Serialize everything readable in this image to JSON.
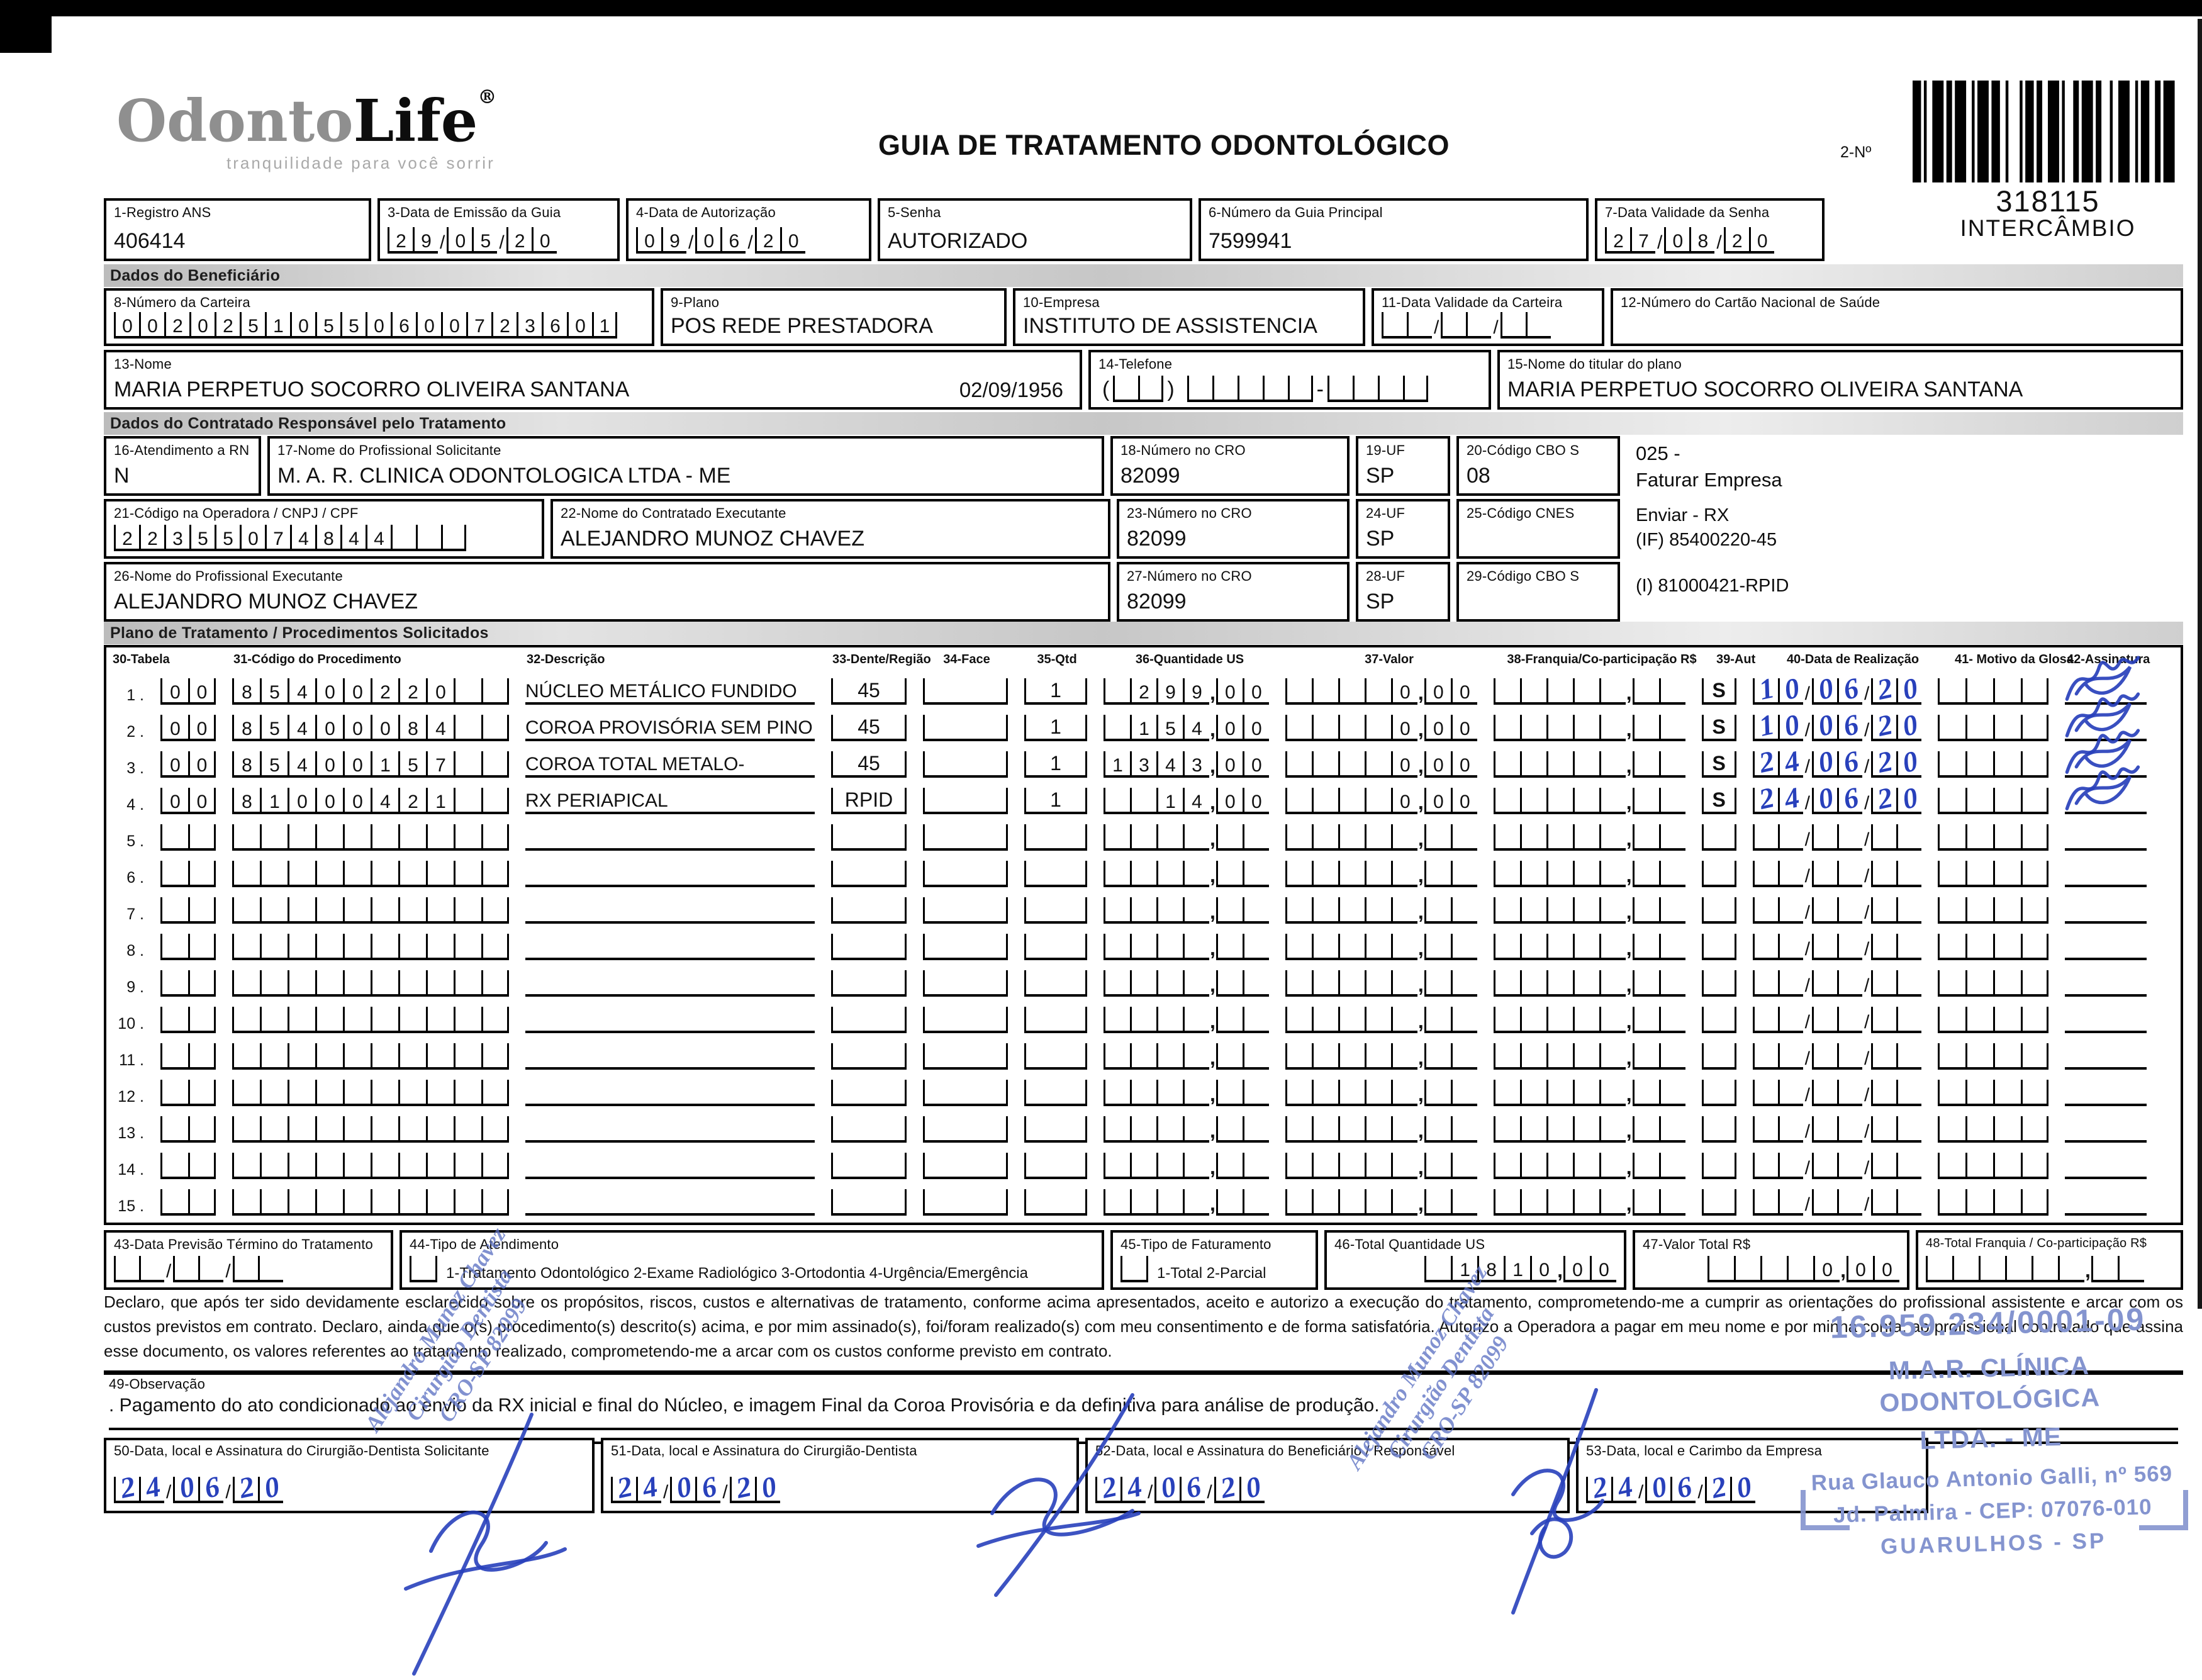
{
  "page": {
    "title": "GUIA DE TRATAMENTO ODONTOLÓGICO",
    "logo": {
      "gray": "Odonto",
      "black": "Life",
      "reg": "®",
      "tagline": "tranquilidade para você sorrir"
    },
    "barcode": {
      "label": "2-Nº",
      "number": "318115",
      "subtitle": "INTERCÂMBIO"
    }
  },
  "sections": {
    "beneficiario": "Dados do Beneficiário",
    "contratado": "Dados do Contratado Responsável pelo Tratamento",
    "plano": "Plano de Tratamento / Procedimentos Solicitados"
  },
  "fields": {
    "f1": {
      "label": "1-Registro ANS",
      "value": "406414"
    },
    "f3": {
      "label": "3-Data de Emissão da Guia",
      "value": "290520"
    },
    "f4": {
      "label": "4-Data de Autorização",
      "value": "090620"
    },
    "f5": {
      "label": "5-Senha",
      "value": "AUTORIZADO"
    },
    "f6": {
      "label": "6-Número da Guia Principal",
      "value": "7599941"
    },
    "f7": {
      "label": "7-Data Validade da Senha",
      "value": "270820"
    },
    "f8": {
      "label": "8-Número da Carteira",
      "value": "00202510550600723601"
    },
    "f9": {
      "label": "9-Plano",
      "value": "POS REDE PRESTADORA"
    },
    "f10": {
      "label": "10-Empresa",
      "value": "INSTITUTO DE ASSISTENCIA"
    },
    "f11": {
      "label": "11-Data Validade da Carteira",
      "value": ""
    },
    "f12": {
      "label": "12-Número do Cartão Nacional de Saúde",
      "value": ""
    },
    "f13": {
      "label": "13-Nome",
      "value": "MARIA PERPETUO SOCORRO OLIVEIRA SANTANA",
      "birthdate": "02/09/1956"
    },
    "f14": {
      "label": "14-Telefone",
      "ddd": "",
      "part1": "",
      "part2": ""
    },
    "f15": {
      "label": "15-Nome do titular do plano",
      "value": "MARIA PERPETUO SOCORRO OLIVEIRA SANTANA"
    },
    "f16": {
      "label": "16-Atendimento a RN",
      "value": "N"
    },
    "f17": {
      "label": "17-Nome do Profissional Solicitante",
      "value": "M. A. R. CLINICA ODONTOLOGICA LTDA - ME"
    },
    "f18": {
      "label": "18-Número no CRO",
      "value": "82099"
    },
    "f19": {
      "label": "19-UF",
      "value": "SP"
    },
    "f20": {
      "label": "20-Código CBO S",
      "value": "08"
    },
    "f21": {
      "label": "21-Código na Operadora / CNPJ / CPF",
      "value": "22355074844"
    },
    "f22": {
      "label": "22-Nome do Contratado Executante",
      "value": "ALEJANDRO MUNOZ CHAVEZ"
    },
    "f23": {
      "label": "23-Número no CRO",
      "value": "82099"
    },
    "f24": {
      "label": "24-UF",
      "value": "SP"
    },
    "f25": {
      "label": "25-Código CNES",
      "value": ""
    },
    "f26": {
      "label": "26-Nome do Profissional Executante",
      "value": "ALEJANDRO MUNOZ CHAVEZ"
    },
    "f27": {
      "label": "27-Número no CRO",
      "value": "82099"
    },
    "f28": {
      "label": "28-UF",
      "value": "SP"
    },
    "f29": {
      "label": "29-Código CBO S",
      "value": ""
    },
    "f43": {
      "label": "43-Data Previsão Término do Tratamento",
      "value": ""
    },
    "f44": {
      "label": "44-Tipo de Atendimento",
      "options": "1-Tratamento Odontológico  2-Exame Radiológico  3-Ortodontia  4-Urgência/Emergência",
      "value": ""
    },
    "f45": {
      "label": "45-Tipo de Faturamento",
      "options": "1-Total  2-Parcial",
      "value": ""
    },
    "f46": {
      "label": "46-Total Quantidade US",
      "money": {
        "i": " 1810",
        "d": "00"
      }
    },
    "f47": {
      "label": "47-Valor Total R$",
      "money": {
        "i": "    0",
        "d": "00"
      }
    },
    "f48": {
      "label": "48-Total Franquia / Co-participação R$",
      "money": {
        "i": "      ",
        "d": "  "
      }
    },
    "f50": {
      "label": "50-Data, local e Assinatura do Cirurgião-Dentista Solicitante",
      "value": "240620"
    },
    "f51": {
      "label": "51-Data, local e Assinatura do Cirurgião-Dentista",
      "value": "240620"
    },
    "f52": {
      "label": "52-Data, local e Assinatura do Beneficiário / Responsável",
      "value": "240620"
    },
    "f53": {
      "label": "53-Data, local e Carimbo da Empresa",
      "value": "240620"
    }
  },
  "margin_notes": {
    "code": "025 -",
    "line1": "Faturar Empresa",
    "line2": "Enviar - RX",
    "line3": "(IF) 85400220-45",
    "line4": "(I) 81000421-RPID"
  },
  "procedures": {
    "headers": [
      "30-Tabela",
      "31-Código do Procedimento",
      "32-Descrição",
      "33-Dente/Região",
      "34-Face",
      "35-Qtd",
      "36-Quantidade US",
      "37-Valor",
      "38-Franquia/Co-participação R$",
      "39-Aut",
      "40-Data de Realização",
      "41- Motivo da Glosa",
      "42-Assinatura"
    ],
    "rows": [
      {
        "n": "1",
        "tabela": "00",
        "codigo": "85400220",
        "descricao": "NÚCLEO METÁLICO FUNDIDO",
        "dente": "45",
        "face": "",
        "qtd": "1",
        "us": {
          "i": " 299",
          "d": "00"
        },
        "valor": {
          "i": "    0",
          "d": "00"
        },
        "franquia": {
          "i": "     ",
          "d": "  "
        },
        "aut": "S",
        "data": "100620",
        "glosa": "",
        "signed": true
      },
      {
        "n": "2",
        "tabela": "00",
        "codigo": "85400084",
        "descricao": "COROA PROVISÓRIA SEM PINO",
        "dente": "45",
        "face": "",
        "qtd": "1",
        "us": {
          "i": " 154",
          "d": "00"
        },
        "valor": {
          "i": "    0",
          "d": "00"
        },
        "franquia": {
          "i": "     ",
          "d": "  "
        },
        "aut": "S",
        "data": "100620",
        "glosa": "",
        "signed": true
      },
      {
        "n": "3",
        "tabela": "00",
        "codigo": "85400157",
        "descricao": "COROA TOTAL METALO-",
        "dente": "45",
        "face": "",
        "qtd": "1",
        "us": {
          "i": "1343",
          "d": "00"
        },
        "valor": {
          "i": "    0",
          "d": "00"
        },
        "franquia": {
          "i": "     ",
          "d": "  "
        },
        "aut": "S",
        "data": "240620",
        "glosa": "",
        "signed": true
      },
      {
        "n": "4",
        "tabela": "00",
        "codigo": "81000421",
        "descricao": "RX PERIAPICAL",
        "dente": "RPID",
        "face": "",
        "qtd": "1",
        "us": {
          "i": "  14",
          "d": "00"
        },
        "valor": {
          "i": "    0",
          "d": "00"
        },
        "franquia": {
          "i": "     ",
          "d": "  "
        },
        "aut": "S",
        "data": "240620",
        "glosa": "",
        "signed": true
      },
      {
        "n": "5",
        "tabela": "",
        "codigo": "",
        "descricao": "",
        "dente": "",
        "face": "",
        "qtd": "",
        "us": {
          "i": "    ",
          "d": "  "
        },
        "valor": {
          "i": "     ",
          "d": "  "
        },
        "franquia": {
          "i": "     ",
          "d": "  "
        },
        "aut": "",
        "data": "",
        "glosa": "",
        "signed": false
      },
      {
        "n": "6",
        "tabela": "",
        "codigo": "",
        "descricao": "",
        "dente": "",
        "face": "",
        "qtd": "",
        "us": {
          "i": "    ",
          "d": "  "
        },
        "valor": {
          "i": "     ",
          "d": "  "
        },
        "franquia": {
          "i": "     ",
          "d": "  "
        },
        "aut": "",
        "data": "",
        "glosa": "",
        "signed": false
      },
      {
        "n": "7",
        "tabela": "",
        "codigo": "",
        "descricao": "",
        "dente": "",
        "face": "",
        "qtd": "",
        "us": {
          "i": "    ",
          "d": "  "
        },
        "valor": {
          "i": "     ",
          "d": "  "
        },
        "franquia": {
          "i": "     ",
          "d": "  "
        },
        "aut": "",
        "data": "",
        "glosa": "",
        "signed": false
      },
      {
        "n": "8",
        "tabela": "",
        "codigo": "",
        "descricao": "",
        "dente": "",
        "face": "",
        "qtd": "",
        "us": {
          "i": "    ",
          "d": "  "
        },
        "valor": {
          "i": "     ",
          "d": "  "
        },
        "franquia": {
          "i": "     ",
          "d": "  "
        },
        "aut": "",
        "data": "",
        "glosa": "",
        "signed": false
      },
      {
        "n": "9",
        "tabela": "",
        "codigo": "",
        "descricao": "",
        "dente": "",
        "face": "",
        "qtd": "",
        "us": {
          "i": "    ",
          "d": "  "
        },
        "valor": {
          "i": "     ",
          "d": "  "
        },
        "franquia": {
          "i": "     ",
          "d": "  "
        },
        "aut": "",
        "data": "",
        "glosa": "",
        "signed": false
      },
      {
        "n": "10",
        "tabela": "",
        "codigo": "",
        "descricao": "",
        "dente": "",
        "face": "",
        "qtd": "",
        "us": {
          "i": "    ",
          "d": "  "
        },
        "valor": {
          "i": "     ",
          "d": "  "
        },
        "franquia": {
          "i": "     ",
          "d": "  "
        },
        "aut": "",
        "data": "",
        "glosa": "",
        "signed": false
      },
      {
        "n": "11",
        "tabela": "",
        "codigo": "",
        "descricao": "",
        "dente": "",
        "face": "",
        "qtd": "",
        "us": {
          "i": "    ",
          "d": "  "
        },
        "valor": {
          "i": "     ",
          "d": "  "
        },
        "franquia": {
          "i": "     ",
          "d": "  "
        },
        "aut": "",
        "data": "",
        "glosa": "",
        "signed": false
      },
      {
        "n": "12",
        "tabela": "",
        "codigo": "",
        "descricao": "",
        "dente": "",
        "face": "",
        "qtd": "",
        "us": {
          "i": "    ",
          "d": "  "
        },
        "valor": {
          "i": "     ",
          "d": "  "
        },
        "franquia": {
          "i": "     ",
          "d": "  "
        },
        "aut": "",
        "data": "",
        "glosa": "",
        "signed": false
      },
      {
        "n": "13",
        "tabela": "",
        "codigo": "",
        "descricao": "",
        "dente": "",
        "face": "",
        "qtd": "",
        "us": {
          "i": "    ",
          "d": "  "
        },
        "valor": {
          "i": "     ",
          "d": "  "
        },
        "franquia": {
          "i": "     ",
          "d": "  "
        },
        "aut": "",
        "data": "",
        "glosa": "",
        "signed": false
      },
      {
        "n": "14",
        "tabela": "",
        "codigo": "",
        "descricao": "",
        "dente": "",
        "face": "",
        "qtd": "",
        "us": {
          "i": "    ",
          "d": "  "
        },
        "valor": {
          "i": "     ",
          "d": "  "
        },
        "franquia": {
          "i": "     ",
          "d": "  "
        },
        "aut": "",
        "data": "",
        "glosa": "",
        "signed": false
      },
      {
        "n": "15",
        "tabela": "",
        "codigo": "",
        "descricao": "",
        "dente": "",
        "face": "",
        "qtd": "",
        "us": {
          "i": "    ",
          "d": "  "
        },
        "valor": {
          "i": "     ",
          "d": "  "
        },
        "franquia": {
          "i": "     ",
          "d": "  "
        },
        "aut": "",
        "data": "",
        "glosa": "",
        "signed": false
      }
    ]
  },
  "declaration": "Declaro, que após ter sido devidamente esclarecido sobre os propósitos, riscos, custos e alternativas de tratamento, conforme acima apresentados, aceito e autorizo a execução do tratamento, comprometendo-me a cumprir as orientações do profissional assistente e arcar com os custos previstos em contrato. Declaro, ainda que o(s) procedimento(s) descrito(s) acima, e por mim assinado(s), foi/foram realizado(s) com meu consentimento e de forma satisfatória. Autorizo a Operadora a pagar em meu nome e por minha conta, ao profissional contratado que assina esse documento, os valores referentes ao tratamento realizado, comprometendo-me a arcar com os custos conforme previsto em contrato.",
  "observacao": {
    "label": "49-Observação",
    "text": ". Pagamento do ato condicionado ao envio da RX inicial e final do Núcleo, e imagem Final da Coroa Provisória e da definitiva para análise de produção."
  },
  "ink_note": {
    "line1": "Alejandro Munoz Chavez",
    "line2": "Cirurgião Dentista",
    "line3": "CRO-SP 82099"
  },
  "company_stamp": {
    "cnpj": "16.959.234/0001-09",
    "name": "M.A.R. CLÍNICA ODONTOLÓGICA",
    "name2": "LTDA. - ME",
    "addr1": "Rua Glauco Antonio Galli, nº 569",
    "addr2": "Jd. Palmira -  CEP: 07076-010",
    "addr3": "GUARULHOS - SP"
  },
  "colors": {
    "ink": "#2840bb",
    "stamp": "#8494cf"
  }
}
